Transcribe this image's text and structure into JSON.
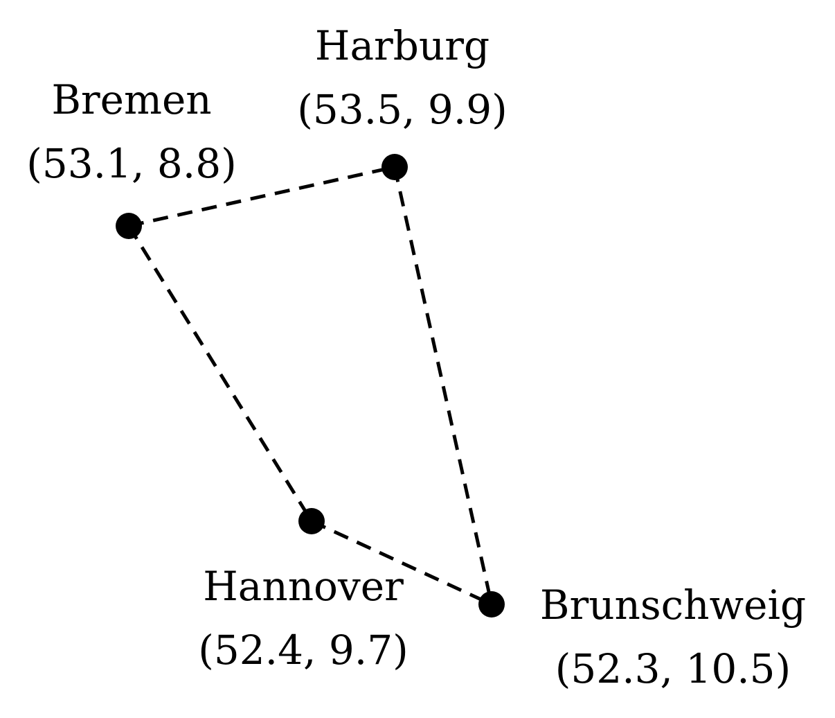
{
  "cities": [
    {
      "id": "bremen",
      "name": "Bremen",
      "coords": "(53.1, 8.8)"
    },
    {
      "id": "harburg",
      "name": "Harburg",
      "coords": "(53.5, 9.9)"
    },
    {
      "id": "hannover",
      "name": "Hannover",
      "coords": "(52.4, 9.7)"
    },
    {
      "id": "brunschweig",
      "name": "Brunschweig",
      "coords": "(52.3, 10.5)"
    }
  ],
  "edges": [
    [
      "bremen",
      "harburg"
    ],
    [
      "harburg",
      "brunschweig"
    ],
    [
      "bremen",
      "hannover"
    ],
    [
      "hannover",
      "brunschweig"
    ]
  ],
  "colors": {
    "ink": "#000000",
    "background": "#ffffff"
  }
}
